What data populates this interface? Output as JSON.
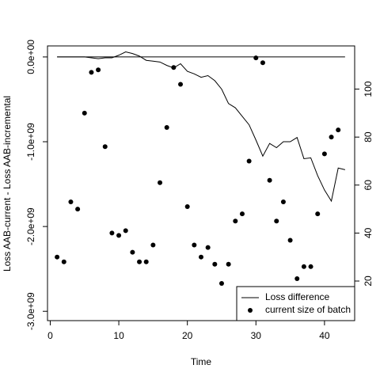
{
  "chart_data": {
    "type": "line",
    "xlabel": "Time",
    "ylabel": "Loss AAB-current - Loss AAB-incremental",
    "xlim": [
      -0.4,
      44.4
    ],
    "xticks": [
      0,
      10,
      20,
      30,
      40
    ],
    "ylim": [
      -3110000000,
      130000000
    ],
    "yticks": [
      {
        "value": 0,
        "label": "0.0e+00"
      },
      {
        "value": -1000000000,
        "label": "-1.0e+09"
      },
      {
        "value": -2000000000,
        "label": "-2.0e+09"
      },
      {
        "value": -3000000000,
        "label": "-3.0e+09"
      }
    ],
    "y2lim": [
      3.5,
      118
    ],
    "y2ticks": [
      20,
      40,
      60,
      80,
      100
    ],
    "hline": 0,
    "legend": "bottomright",
    "series": [
      {
        "name": "Loss difference",
        "color": "#000000",
        "style": "line",
        "x": [
          1,
          2,
          3,
          4,
          5,
          6,
          7,
          8,
          9,
          10,
          11,
          12,
          13,
          14,
          15,
          16,
          17,
          18,
          19,
          20,
          21,
          22,
          23,
          24,
          25,
          26,
          27,
          28,
          29,
          30,
          31,
          32,
          33,
          34,
          35,
          36,
          37,
          38,
          39,
          40,
          41,
          42,
          43
        ],
        "values": [
          0,
          0,
          0,
          0,
          0,
          -10000000,
          -20000000,
          -10000000,
          -10000000,
          20000000,
          60000000,
          40000000,
          10000000,
          -40000000,
          -50000000,
          -60000000,
          -100000000,
          -130000000,
          -80000000,
          -170000000,
          -200000000,
          -240000000,
          -220000000,
          -280000000,
          -380000000,
          -550000000,
          -600000000,
          -700000000,
          -800000000,
          -980000000,
          -1170000000,
          -1020000000,
          -1070000000,
          -1000000000,
          -1000000000,
          -950000000,
          -1200000000,
          -1190000000,
          -1400000000,
          -1570000000,
          -1700000000,
          -1310000000,
          -1330000000
        ]
      },
      {
        "name": "current size of batch",
        "color": "#000000",
        "style": "points",
        "axis": "y2",
        "x": [
          1,
          2,
          3,
          4,
          5,
          6,
          7,
          8,
          9,
          10,
          11,
          12,
          13,
          14,
          15,
          16,
          17,
          18,
          19,
          20,
          21,
          22,
          23,
          24,
          25,
          26,
          27,
          28,
          29,
          30,
          31,
          32,
          33,
          34,
          35,
          36,
          37,
          38,
          39,
          40,
          41,
          42
        ],
        "values": [
          30,
          28,
          53,
          50,
          90,
          107,
          108,
          76,
          40,
          39,
          41,
          32,
          28,
          28,
          35,
          61,
          84,
          109,
          102,
          51,
          35,
          30,
          34,
          27,
          19,
          27,
          45,
          48,
          70,
          113,
          111,
          62,
          45,
          53,
          37,
          21,
          26,
          26,
          48,
          73,
          80,
          83
        ]
      }
    ]
  }
}
